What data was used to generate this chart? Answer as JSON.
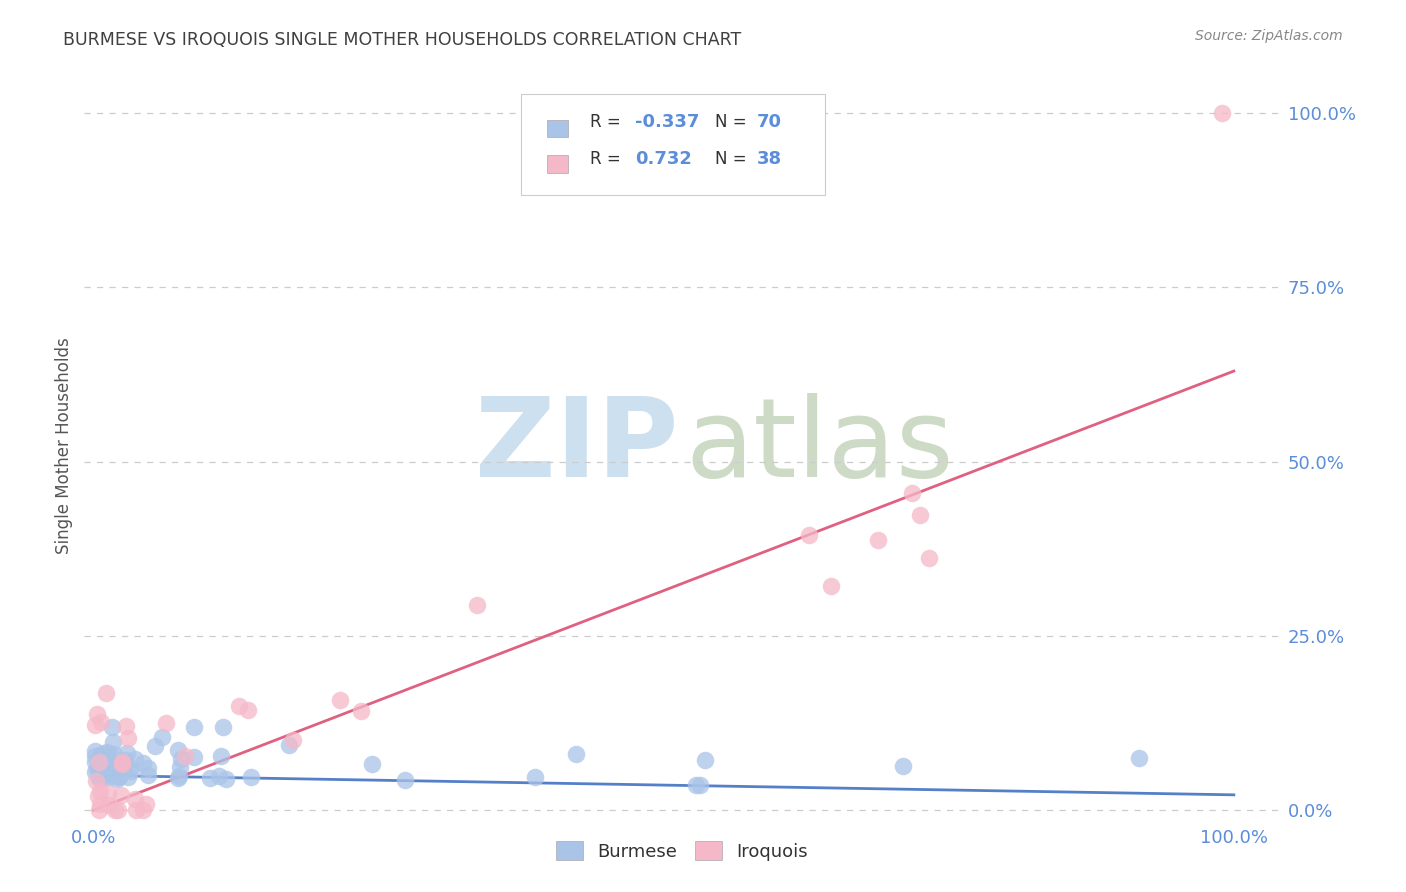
{
  "title": "BURMESE VS IROQUOIS SINGLE MOTHER HOUSEHOLDS CORRELATION CHART",
  "source": "Source: ZipAtlas.com",
  "ylabel": "Single Mother Households",
  "watermark_zip": "ZIP",
  "watermark_atlas": "atlas",
  "legend_burmese": "Burmese",
  "legend_iroquois": "Iroquois",
  "burmese_R": "-0.337",
  "burmese_N": "70",
  "iroquois_R": "0.732",
  "iroquois_N": "38",
  "burmese_color": "#aac4e8",
  "iroquois_color": "#f5b8c8",
  "burmese_line_color": "#5580c8",
  "iroquois_line_color": "#e06080",
  "title_color": "#404040",
  "source_color": "#888888",
  "axis_color": "#5b8dd9",
  "ylabel_color": "#555555",
  "grid_color": "#cccccc",
  "background_color": "#ffffff",
  "legend_text_color": "#333333",
  "legend_value_color": "#5b8dd9"
}
